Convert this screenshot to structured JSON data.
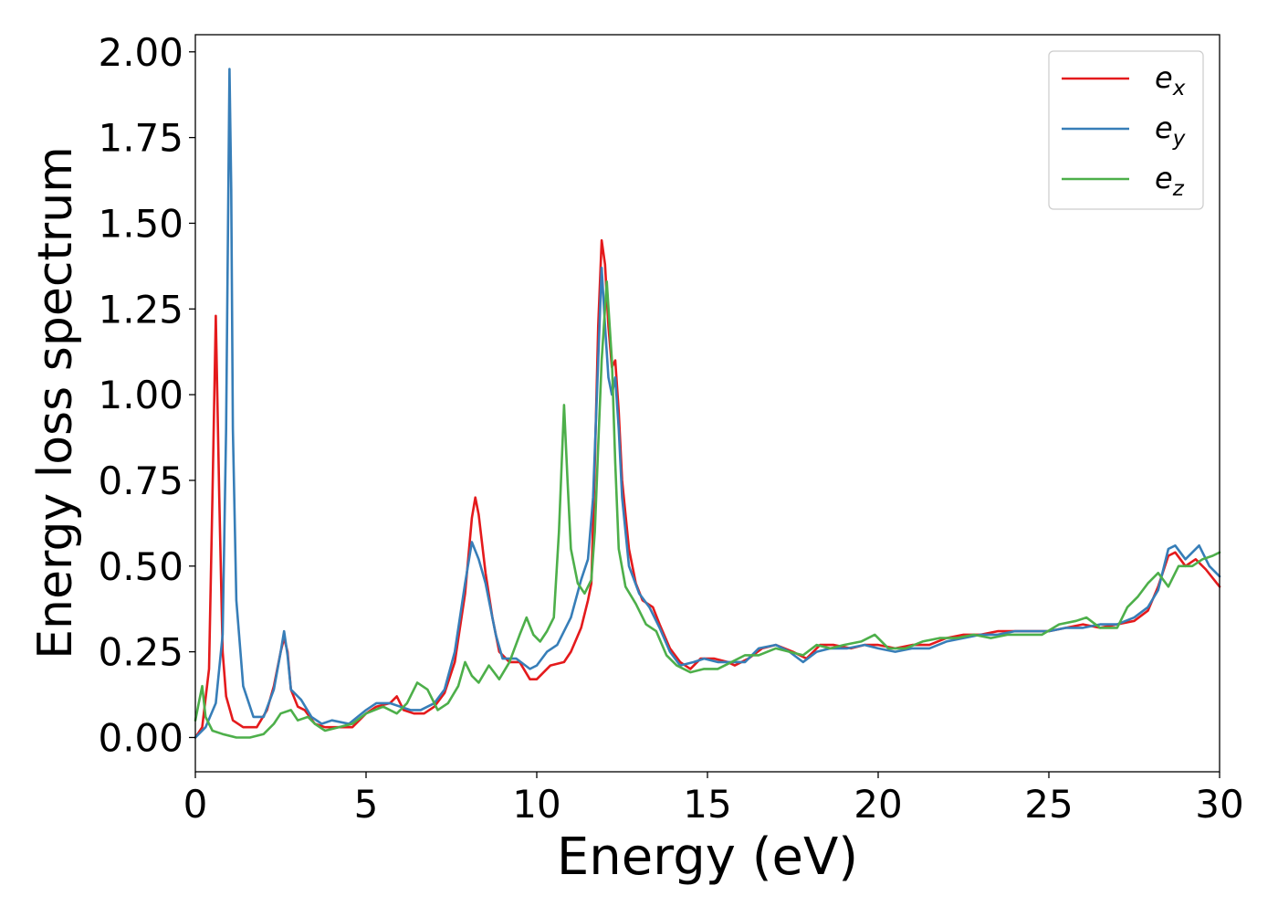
{
  "chart_data": {
    "type": "line",
    "title": "",
    "xlabel": "Energy (eV)",
    "ylabel": "Energy loss spectrum",
    "xlim": [
      0,
      30
    ],
    "ylim": [
      -0.1,
      2.05
    ],
    "x_ticks": [
      0,
      5,
      10,
      15,
      20,
      25,
      30
    ],
    "x_tick_labels": [
      "0",
      "5",
      "10",
      "15",
      "20",
      "25",
      "30"
    ],
    "y_ticks": [
      0,
      0.25,
      0.5,
      0.75,
      1.0,
      1.25,
      1.5,
      1.75,
      2.0
    ],
    "y_tick_labels": [
      "0.00",
      "0.25",
      "0.50",
      "0.75",
      "1.00",
      "1.25",
      "1.50",
      "1.75",
      "2.00"
    ],
    "grid": false,
    "legend": {
      "position": "top-right"
    },
    "series": [
      {
        "name": "e",
        "subscript": "x",
        "color": "#e41a1c",
        "points": [
          [
            0,
            0.0
          ],
          [
            0.2,
            0.03
          ],
          [
            0.4,
            0.2
          ],
          [
            0.5,
            0.7
          ],
          [
            0.6,
            1.23
          ],
          [
            0.7,
            0.7
          ],
          [
            0.8,
            0.25
          ],
          [
            0.9,
            0.12
          ],
          [
            1.1,
            0.05
          ],
          [
            1.4,
            0.03
          ],
          [
            1.8,
            0.03
          ],
          [
            2.1,
            0.08
          ],
          [
            2.3,
            0.15
          ],
          [
            2.5,
            0.25
          ],
          [
            2.6,
            0.29
          ],
          [
            2.7,
            0.25
          ],
          [
            2.8,
            0.14
          ],
          [
            3.0,
            0.09
          ],
          [
            3.2,
            0.08
          ],
          [
            3.5,
            0.04
          ],
          [
            3.8,
            0.03
          ],
          [
            4.2,
            0.03
          ],
          [
            4.6,
            0.03
          ],
          [
            5.0,
            0.07
          ],
          [
            5.3,
            0.09
          ],
          [
            5.7,
            0.1
          ],
          [
            5.9,
            0.12
          ],
          [
            6.1,
            0.08
          ],
          [
            6.4,
            0.07
          ],
          [
            6.7,
            0.07
          ],
          [
            7.0,
            0.09
          ],
          [
            7.3,
            0.13
          ],
          [
            7.6,
            0.22
          ],
          [
            7.9,
            0.42
          ],
          [
            8.1,
            0.64
          ],
          [
            8.2,
            0.7
          ],
          [
            8.3,
            0.65
          ],
          [
            8.5,
            0.48
          ],
          [
            8.7,
            0.35
          ],
          [
            8.9,
            0.25
          ],
          [
            9.2,
            0.22
          ],
          [
            9.5,
            0.22
          ],
          [
            9.8,
            0.17
          ],
          [
            10.0,
            0.17
          ],
          [
            10.4,
            0.21
          ],
          [
            10.8,
            0.22
          ],
          [
            11.0,
            0.25
          ],
          [
            11.3,
            0.32
          ],
          [
            11.5,
            0.4
          ],
          [
            11.6,
            0.45
          ],
          [
            11.7,
            0.8
          ],
          [
            11.8,
            1.2
          ],
          [
            11.9,
            1.45
          ],
          [
            12.0,
            1.38
          ],
          [
            12.1,
            1.2
          ],
          [
            12.2,
            1.08
          ],
          [
            12.3,
            1.1
          ],
          [
            12.4,
            0.95
          ],
          [
            12.5,
            0.75
          ],
          [
            12.7,
            0.55
          ],
          [
            12.9,
            0.45
          ],
          [
            13.1,
            0.4
          ],
          [
            13.4,
            0.38
          ],
          [
            13.6,
            0.33
          ],
          [
            13.9,
            0.26
          ],
          [
            14.2,
            0.22
          ],
          [
            14.5,
            0.2
          ],
          [
            14.8,
            0.23
          ],
          [
            15.2,
            0.23
          ],
          [
            15.6,
            0.22
          ],
          [
            15.8,
            0.21
          ],
          [
            16.2,
            0.23
          ],
          [
            16.6,
            0.26
          ],
          [
            17.0,
            0.27
          ],
          [
            17.5,
            0.25
          ],
          [
            17.9,
            0.23
          ],
          [
            18.3,
            0.27
          ],
          [
            18.7,
            0.27
          ],
          [
            19.2,
            0.26
          ],
          [
            19.6,
            0.27
          ],
          [
            20.0,
            0.27
          ],
          [
            20.5,
            0.26
          ],
          [
            21.0,
            0.27
          ],
          [
            21.5,
            0.27
          ],
          [
            22.0,
            0.29
          ],
          [
            22.5,
            0.3
          ],
          [
            23.0,
            0.3
          ],
          [
            23.5,
            0.31
          ],
          [
            24.0,
            0.31
          ],
          [
            24.5,
            0.31
          ],
          [
            25.0,
            0.31
          ],
          [
            25.5,
            0.32
          ],
          [
            26.0,
            0.33
          ],
          [
            26.5,
            0.32
          ],
          [
            27.0,
            0.33
          ],
          [
            27.5,
            0.34
          ],
          [
            27.9,
            0.37
          ],
          [
            28.2,
            0.44
          ],
          [
            28.5,
            0.53
          ],
          [
            28.7,
            0.54
          ],
          [
            29.0,
            0.5
          ],
          [
            29.3,
            0.52
          ],
          [
            29.6,
            0.49
          ],
          [
            30.0,
            0.44
          ]
        ]
      },
      {
        "name": "e",
        "subscript": "y",
        "color": "#377eb8",
        "points": [
          [
            0,
            0.0
          ],
          [
            0.3,
            0.03
          ],
          [
            0.6,
            0.1
          ],
          [
            0.8,
            0.3
          ],
          [
            0.9,
            0.9
          ],
          [
            1.0,
            1.95
          ],
          [
            1.05,
            1.6
          ],
          [
            1.1,
            0.9
          ],
          [
            1.2,
            0.4
          ],
          [
            1.4,
            0.15
          ],
          [
            1.7,
            0.06
          ],
          [
            2.0,
            0.06
          ],
          [
            2.3,
            0.14
          ],
          [
            2.5,
            0.25
          ],
          [
            2.6,
            0.31
          ],
          [
            2.7,
            0.24
          ],
          [
            2.8,
            0.14
          ],
          [
            3.1,
            0.11
          ],
          [
            3.4,
            0.06
          ],
          [
            3.7,
            0.04
          ],
          [
            4.0,
            0.05
          ],
          [
            4.5,
            0.04
          ],
          [
            5.0,
            0.08
          ],
          [
            5.3,
            0.1
          ],
          [
            5.7,
            0.1
          ],
          [
            6.0,
            0.09
          ],
          [
            6.3,
            0.08
          ],
          [
            6.6,
            0.08
          ],
          [
            7.0,
            0.1
          ],
          [
            7.3,
            0.14
          ],
          [
            7.6,
            0.25
          ],
          [
            7.9,
            0.45
          ],
          [
            8.1,
            0.57
          ],
          [
            8.3,
            0.52
          ],
          [
            8.5,
            0.45
          ],
          [
            8.8,
            0.3
          ],
          [
            9.0,
            0.23
          ],
          [
            9.4,
            0.23
          ],
          [
            9.8,
            0.2
          ],
          [
            10.0,
            0.21
          ],
          [
            10.3,
            0.25
          ],
          [
            10.6,
            0.27
          ],
          [
            11.0,
            0.35
          ],
          [
            11.3,
            0.46
          ],
          [
            11.5,
            0.52
          ],
          [
            11.65,
            0.7
          ],
          [
            11.8,
            1.1
          ],
          [
            11.9,
            1.37
          ],
          [
            12.0,
            1.2
          ],
          [
            12.1,
            1.05
          ],
          [
            12.2,
            1.0
          ],
          [
            12.3,
            1.05
          ],
          [
            12.4,
            0.9
          ],
          [
            12.5,
            0.7
          ],
          [
            12.7,
            0.5
          ],
          [
            13.0,
            0.42
          ],
          [
            13.3,
            0.38
          ],
          [
            13.6,
            0.32
          ],
          [
            13.9,
            0.25
          ],
          [
            14.2,
            0.21
          ],
          [
            14.6,
            0.22
          ],
          [
            14.9,
            0.23
          ],
          [
            15.3,
            0.22
          ],
          [
            15.7,
            0.22
          ],
          [
            16.1,
            0.22
          ],
          [
            16.5,
            0.26
          ],
          [
            17.0,
            0.27
          ],
          [
            17.4,
            0.25
          ],
          [
            17.8,
            0.22
          ],
          [
            18.2,
            0.25
          ],
          [
            18.6,
            0.26
          ],
          [
            19.1,
            0.26
          ],
          [
            19.6,
            0.27
          ],
          [
            20.0,
            0.26
          ],
          [
            20.5,
            0.25
          ],
          [
            21.0,
            0.26
          ],
          [
            21.5,
            0.26
          ],
          [
            22.0,
            0.28
          ],
          [
            22.5,
            0.29
          ],
          [
            23.0,
            0.3
          ],
          [
            23.5,
            0.3
          ],
          [
            24.0,
            0.31
          ],
          [
            24.5,
            0.31
          ],
          [
            25.0,
            0.31
          ],
          [
            25.5,
            0.32
          ],
          [
            26.0,
            0.32
          ],
          [
            26.5,
            0.33
          ],
          [
            27.0,
            0.33
          ],
          [
            27.5,
            0.35
          ],
          [
            27.9,
            0.38
          ],
          [
            28.2,
            0.43
          ],
          [
            28.5,
            0.55
          ],
          [
            28.7,
            0.56
          ],
          [
            29.0,
            0.52
          ],
          [
            29.4,
            0.56
          ],
          [
            29.7,
            0.5
          ],
          [
            30.0,
            0.47
          ]
        ]
      },
      {
        "name": "e",
        "subscript": "z",
        "color": "#4daf4a",
        "points": [
          [
            0,
            0.05
          ],
          [
            0.1,
            0.1
          ],
          [
            0.2,
            0.15
          ],
          [
            0.3,
            0.06
          ],
          [
            0.5,
            0.02
          ],
          [
            0.8,
            0.01
          ],
          [
            1.2,
            0.0
          ],
          [
            1.6,
            0.0
          ],
          [
            2.0,
            0.01
          ],
          [
            2.3,
            0.04
          ],
          [
            2.5,
            0.07
          ],
          [
            2.8,
            0.08
          ],
          [
            3.0,
            0.05
          ],
          [
            3.3,
            0.06
          ],
          [
            3.5,
            0.04
          ],
          [
            3.8,
            0.02
          ],
          [
            4.2,
            0.03
          ],
          [
            4.6,
            0.04
          ],
          [
            5.0,
            0.07
          ],
          [
            5.5,
            0.09
          ],
          [
            5.9,
            0.07
          ],
          [
            6.2,
            0.1
          ],
          [
            6.5,
            0.16
          ],
          [
            6.8,
            0.14
          ],
          [
            7.1,
            0.08
          ],
          [
            7.4,
            0.1
          ],
          [
            7.7,
            0.15
          ],
          [
            7.9,
            0.22
          ],
          [
            8.1,
            0.18
          ],
          [
            8.3,
            0.16
          ],
          [
            8.6,
            0.21
          ],
          [
            8.9,
            0.17
          ],
          [
            9.2,
            0.22
          ],
          [
            9.5,
            0.3
          ],
          [
            9.7,
            0.35
          ],
          [
            9.9,
            0.3
          ],
          [
            10.1,
            0.28
          ],
          [
            10.3,
            0.31
          ],
          [
            10.5,
            0.35
          ],
          [
            10.65,
            0.6
          ],
          [
            10.8,
            0.97
          ],
          [
            10.9,
            0.75
          ],
          [
            11.0,
            0.55
          ],
          [
            11.2,
            0.45
          ],
          [
            11.4,
            0.42
          ],
          [
            11.6,
            0.46
          ],
          [
            11.7,
            0.6
          ],
          [
            11.8,
            0.85
          ],
          [
            11.9,
            1.1
          ],
          [
            12.05,
            1.33
          ],
          [
            12.2,
            1.1
          ],
          [
            12.3,
            0.8
          ],
          [
            12.4,
            0.55
          ],
          [
            12.6,
            0.44
          ],
          [
            12.9,
            0.39
          ],
          [
            13.2,
            0.33
          ],
          [
            13.5,
            0.31
          ],
          [
            13.8,
            0.24
          ],
          [
            14.1,
            0.21
          ],
          [
            14.5,
            0.19
          ],
          [
            14.9,
            0.2
          ],
          [
            15.3,
            0.2
          ],
          [
            15.7,
            0.22
          ],
          [
            16.1,
            0.24
          ],
          [
            16.5,
            0.24
          ],
          [
            17.0,
            0.26
          ],
          [
            17.4,
            0.25
          ],
          [
            17.8,
            0.24
          ],
          [
            18.2,
            0.27
          ],
          [
            18.6,
            0.26
          ],
          [
            19.0,
            0.27
          ],
          [
            19.5,
            0.28
          ],
          [
            19.9,
            0.3
          ],
          [
            20.3,
            0.26
          ],
          [
            20.8,
            0.26
          ],
          [
            21.3,
            0.28
          ],
          [
            21.8,
            0.29
          ],
          [
            22.3,
            0.29
          ],
          [
            22.8,
            0.3
          ],
          [
            23.3,
            0.29
          ],
          [
            23.8,
            0.3
          ],
          [
            24.3,
            0.3
          ],
          [
            24.8,
            0.3
          ],
          [
            25.3,
            0.33
          ],
          [
            25.8,
            0.34
          ],
          [
            26.1,
            0.35
          ],
          [
            26.5,
            0.32
          ],
          [
            27.0,
            0.32
          ],
          [
            27.3,
            0.38
          ],
          [
            27.6,
            0.41
          ],
          [
            27.9,
            0.45
          ],
          [
            28.2,
            0.48
          ],
          [
            28.5,
            0.44
          ],
          [
            28.8,
            0.5
          ],
          [
            29.2,
            0.5
          ],
          [
            29.5,
            0.52
          ],
          [
            29.8,
            0.53
          ],
          [
            30.0,
            0.54
          ]
        ]
      }
    ]
  }
}
